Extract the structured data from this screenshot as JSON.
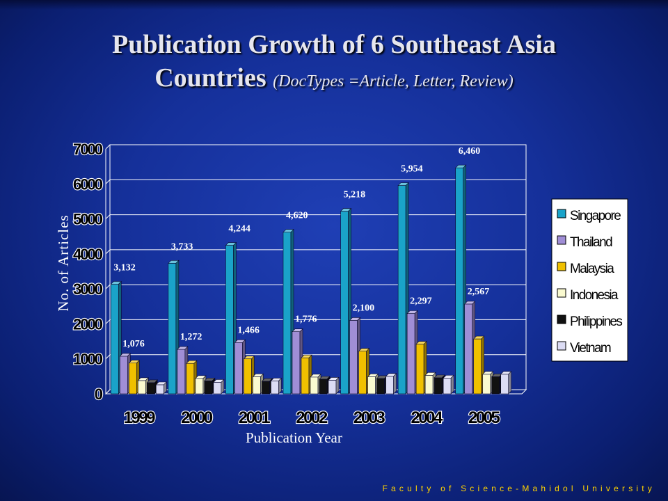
{
  "slide": {
    "title_main_line1": "Publication Growth of 6 Southeast Asia",
    "title_main_line2": "Countries",
    "title_sub": "(DocTypes =Article, Letter, Review)",
    "footer": "Faculty of Science-Mahidol University"
  },
  "chart_data": {
    "type": "bar",
    "title": "",
    "xlabel": "Publication Year",
    "ylabel": "No. of Articles",
    "categories": [
      "1999",
      "2000",
      "2001",
      "2002",
      "2003",
      "2004",
      "2005"
    ],
    "ylim": [
      0,
      7000
    ],
    "yticks": [
      "0",
      "1000",
      "2000",
      "3000",
      "4000",
      "5000",
      "6000",
      "7000"
    ],
    "grid": true,
    "legend": "right",
    "series": [
      {
        "name": "Singapore",
        "color": "#1aa3c9",
        "values": [
          3132,
          3733,
          4244,
          4620,
          5218,
          5954,
          6460
        ]
      },
      {
        "name": "Thailand",
        "color": "#a08ed6",
        "values": [
          1076,
          1272,
          1466,
          1776,
          2100,
          2297,
          2567
        ]
      },
      {
        "name": "Malaysia",
        "color": "#f0c000",
        "values": [
          880,
          870,
          1000,
          1030,
          1220,
          1420,
          1570
        ]
      },
      {
        "name": "Indonesia",
        "color": "#fafad0",
        "values": [
          380,
          440,
          490,
          480,
          490,
          530,
          560
        ]
      },
      {
        "name": "Philippines",
        "color": "#111111",
        "values": [
          320,
          370,
          360,
          420,
          440,
          460,
          490
        ]
      },
      {
        "name": "Vietnam",
        "color": "#dcdcf4",
        "values": [
          260,
          330,
          370,
          390,
          500,
          450,
          560
        ]
      }
    ],
    "data_labels": {
      "Singapore": [
        "3,132",
        "3,733",
        "4,244",
        "4,620",
        "5,218",
        "5,954",
        "6,460"
      ],
      "Thailand": [
        "1,076",
        "1,272",
        "1,466",
        "1,776",
        "2,100",
        "2,297",
        "2,567"
      ]
    }
  }
}
